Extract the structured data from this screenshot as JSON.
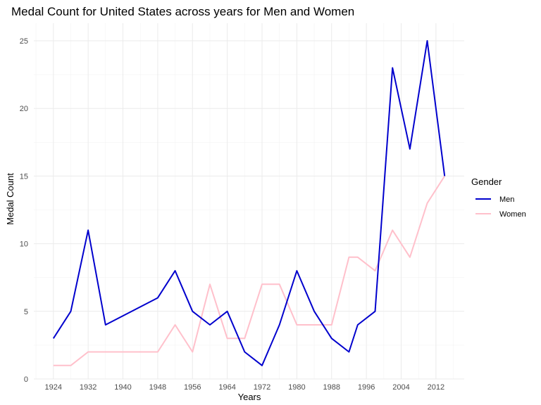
{
  "chart_data": {
    "type": "line",
    "title": "Medal Count for United States across years for Men and Women",
    "xlabel": "Years",
    "ylabel": "Medal Count",
    "x": [
      1924,
      1928,
      1932,
      1936,
      1948,
      1952,
      1956,
      1960,
      1964,
      1968,
      1972,
      1976,
      1980,
      1984,
      1988,
      1992,
      1994,
      1998,
      2002,
      2006,
      2010,
      2014
    ],
    "xticks": [
      "1924",
      "1932",
      "1940",
      "1948",
      "1956",
      "1964",
      "1972",
      "1980",
      "1988",
      "1996",
      "2004",
      "2012"
    ],
    "yticks": [
      "0",
      "5",
      "10",
      "15",
      "20",
      "25"
    ],
    "xlim": [
      1919.5,
      2018.5
    ],
    "ylim": [
      0,
      26.3
    ],
    "grid": true,
    "legend": {
      "title": "Gender",
      "position": "right"
    },
    "series": [
      {
        "name": "Men",
        "color": "#0000CD",
        "values": [
          3,
          5,
          11,
          4,
          6,
          8,
          5,
          4,
          5,
          2,
          1,
          4,
          8,
          5,
          3,
          2,
          4,
          5,
          23,
          17,
          25,
          15
        ]
      },
      {
        "name": "Women",
        "color": "#FFC0CB",
        "values": [
          1,
          1,
          2,
          2,
          2,
          4,
          2,
          7,
          3,
          3,
          7,
          7,
          4,
          4,
          4,
          9,
          9,
          8,
          11,
          9,
          13,
          15
        ]
      }
    ]
  }
}
